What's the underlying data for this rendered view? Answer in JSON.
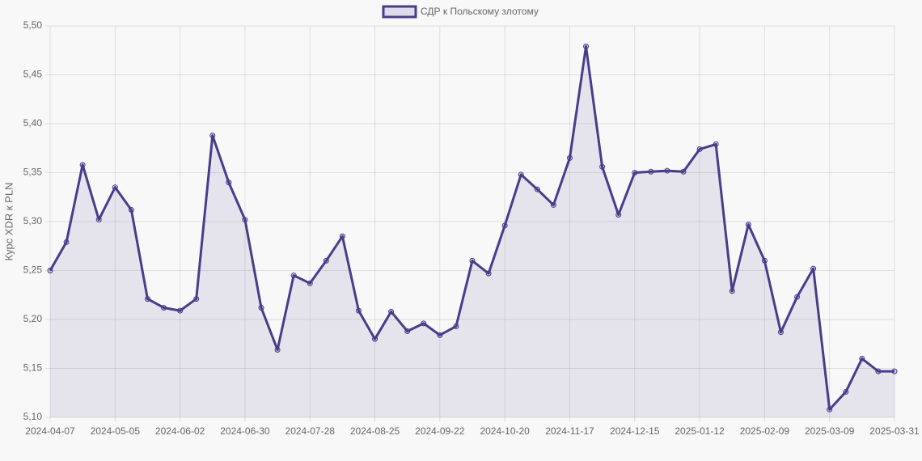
{
  "chart_data": {
    "type": "line",
    "legend": "top",
    "ylabel": "Курс XDR к PLN",
    "grid": true,
    "fill": true,
    "categories": [
      "2024-04-07",
      null,
      null,
      null,
      "2024-05-05",
      null,
      null,
      null,
      "2024-06-02",
      null,
      null,
      null,
      "2024-06-30",
      null,
      null,
      null,
      "2024-07-28",
      null,
      null,
      null,
      "2024-08-25",
      null,
      null,
      null,
      "2024-09-22",
      null,
      null,
      null,
      "2024-10-20",
      null,
      null,
      null,
      "2024-11-17",
      null,
      null,
      null,
      "2024-12-15",
      null,
      null,
      null,
      "2025-01-12",
      null,
      null,
      null,
      "2025-02-09",
      null,
      null,
      null,
      "2025-03-09",
      null,
      null,
      null,
      "2025-03-31"
    ],
    "series": [
      {
        "name": "СДР к Польскому злотому",
        "color": "#483d8b",
        "values": [
          5.25,
          5.279,
          5.358,
          5.302,
          5.335,
          5.312,
          5.221,
          5.212,
          5.209,
          5.221,
          5.388,
          5.34,
          5.302,
          5.212,
          5.169,
          5.245,
          5.237,
          5.26,
          5.285,
          5.209,
          5.18,
          5.208,
          5.188,
          5.196,
          5.184,
          5.193,
          5.26,
          5.247,
          5.296,
          5.348,
          5.333,
          5.317,
          5.365,
          5.479,
          5.356,
          5.307,
          5.35,
          5.351,
          5.352,
          5.351,
          5.374,
          5.379,
          5.229,
          5.297,
          5.26,
          5.187,
          5.223,
          5.252,
          5.108,
          5.126,
          5.16,
          5.147,
          5.147
        ]
      }
    ],
    "ylim": [
      5.1,
      5.5
    ],
    "yticks": [
      {
        "value": 5.1,
        "label": "5,10"
      },
      {
        "value": 5.15,
        "label": "5,15"
      },
      {
        "value": 5.2,
        "label": "5,20"
      },
      {
        "value": 5.25,
        "label": "5,25"
      },
      {
        "value": 5.3,
        "label": "5,30"
      },
      {
        "value": 5.35,
        "label": "5,35"
      },
      {
        "value": 5.4,
        "label": "5,40"
      },
      {
        "value": 5.45,
        "label": "5,45"
      },
      {
        "value": 5.5,
        "label": "5,50"
      }
    ]
  }
}
